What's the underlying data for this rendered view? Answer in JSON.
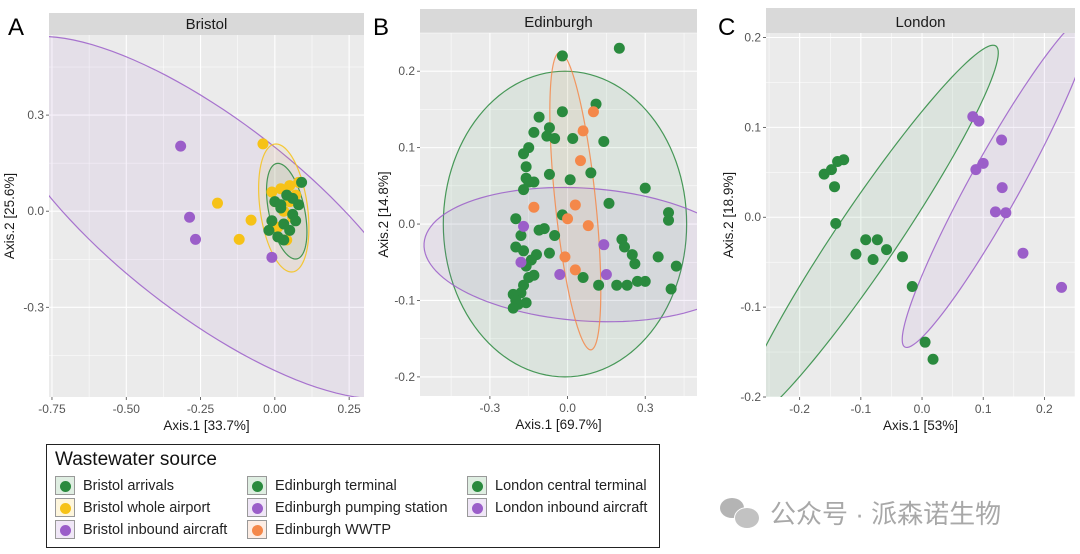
{
  "colors": {
    "green": "#2a8a3e",
    "yellow": "#f6c217",
    "purple": "#9b5ec9",
    "orange": "#f4884a",
    "panel_bg": "#ebebeb",
    "strip_bg": "#d9d9d9",
    "grid": "#ffffff"
  },
  "chart_data": [
    {
      "type": "scatter",
      "panel_letter": "A",
      "title": "Bristol",
      "xlabel": "Axis.1   [33.7%]",
      "ylabel": "Axis.2   [25.6%]",
      "xlim": [
        -0.76,
        0.3
      ],
      "ylim": [
        -0.58,
        0.55
      ],
      "xticks": [
        -0.75,
        -0.5,
        -0.25,
        0.0,
        0.25
      ],
      "xtick_labels": [
        "-0.75",
        "-0.50",
        "-0.25",
        "0.00",
        "0.25"
      ],
      "yticks": [
        -0.3,
        0.0,
        0.3
      ],
      "ytick_labels": [
        "-0.3",
        "0.0",
        "0.3"
      ],
      "grid": true,
      "series": [
        {
          "name": "Bristol inbound aircraft",
          "color_key": "purple",
          "ellipse": {
            "cx": -0.22,
            "cy": -0.02,
            "rx": 0.62,
            "ry": 0.22,
            "angle_deg": -38
          },
          "points": [
            [
              -0.317,
              0.203
            ],
            [
              -0.287,
              -0.019
            ],
            [
              -0.267,
              -0.088
            ],
            [
              -0.01,
              -0.144
            ]
          ]
        },
        {
          "name": "Bristol whole airport",
          "color_key": "yellow",
          "ellipse": {
            "cx": 0.03,
            "cy": 0.01,
            "rx": 0.07,
            "ry": 0.18,
            "angle_deg": 8
          },
          "points": [
            [
              -0.04,
              0.21
            ],
            [
              -0.193,
              0.025
            ],
            [
              -0.08,
              -0.028
            ],
            [
              -0.12,
              -0.088
            ],
            [
              0.02,
              0.07
            ],
            [
              0.05,
              0.08
            ],
            [
              0.07,
              0.05
            ],
            [
              0.0,
              0.03
            ],
            [
              0.03,
              0.0
            ],
            [
              0.06,
              -0.02
            ],
            [
              0.01,
              -0.05
            ],
            [
              0.04,
              -0.09
            ],
            [
              0.08,
              0.09
            ],
            [
              -0.01,
              0.06
            ],
            [
              0.05,
              0.03
            ]
          ]
        },
        {
          "name": "Bristol arrivals",
          "color_key": "green",
          "ellipse": {
            "cx": 0.04,
            "cy": 0.0,
            "rx": 0.05,
            "ry": 0.13,
            "angle_deg": 12
          },
          "points": [
            [
              0.0,
              0.03
            ],
            [
              0.02,
              0.01
            ],
            [
              0.06,
              -0.01
            ],
            [
              0.08,
              0.02
            ],
            [
              0.03,
              -0.04
            ],
            [
              -0.02,
              -0.06
            ],
            [
              0.05,
              -0.06
            ],
            [
              0.07,
              -0.03
            ],
            [
              0.01,
              -0.08
            ],
            [
              0.09,
              0.09
            ],
            [
              0.04,
              0.05
            ],
            [
              0.02,
              0.02
            ],
            [
              -0.01,
              -0.03
            ],
            [
              0.06,
              0.04
            ],
            [
              0.03,
              -0.09
            ]
          ]
        }
      ]
    },
    {
      "type": "scatter",
      "panel_letter": "B",
      "title": "Edinburgh",
      "xlabel": "Axis.1   [69.7%]",
      "ylabel": "Axis.2   [14.8%]",
      "xlim": [
        -0.57,
        0.5
      ],
      "ylim": [
        -0.225,
        0.25
      ],
      "xticks": [
        -0.3,
        0.0,
        0.3
      ],
      "xtick_labels": [
        "-0.3",
        "0.0",
        "0.3"
      ],
      "yticks": [
        -0.2,
        -0.1,
        0.0,
        0.1,
        0.2
      ],
      "ytick_labels": [
        "-0.2",
        "-0.1",
        "0.0",
        "0.1",
        "0.2"
      ],
      "grid": true,
      "series": [
        {
          "name": "Edinburgh terminal",
          "color_key": "green",
          "ellipse": {
            "cx": -0.01,
            "cy": 0.0,
            "rx": 0.47,
            "ry": 0.2,
            "angle_deg": 0
          },
          "points": [
            [
              -0.02,
              0.22
            ],
            [
              0.2,
              0.23
            ],
            [
              -0.02,
              0.147
            ],
            [
              0.11,
              0.157
            ],
            [
              -0.11,
              0.14
            ],
            [
              -0.07,
              0.126
            ],
            [
              -0.13,
              0.12
            ],
            [
              -0.08,
              0.115
            ],
            [
              -0.05,
              0.112
            ],
            [
              0.02,
              0.112
            ],
            [
              0.14,
              0.108
            ],
            [
              -0.15,
              0.1
            ],
            [
              -0.17,
              0.092
            ],
            [
              -0.16,
              0.075
            ],
            [
              -0.07,
              0.065
            ],
            [
              0.09,
              0.067
            ],
            [
              -0.16,
              0.06
            ],
            [
              -0.15,
              0.055
            ],
            [
              -0.13,
              0.055
            ],
            [
              -0.17,
              0.045
            ],
            [
              0.01,
              0.058
            ],
            [
              0.3,
              0.047
            ],
            [
              0.16,
              0.027
            ],
            [
              -0.02,
              0.012
            ],
            [
              0.39,
              0.015
            ],
            [
              0.39,
              0.005
            ],
            [
              -0.2,
              0.007
            ],
            [
              -0.18,
              -0.015
            ],
            [
              -0.11,
              -0.008
            ],
            [
              -0.09,
              -0.006
            ],
            [
              -0.05,
              -0.015
            ],
            [
              -0.2,
              -0.03
            ],
            [
              -0.17,
              -0.035
            ],
            [
              0.21,
              -0.02
            ],
            [
              0.22,
              -0.03
            ],
            [
              0.25,
              -0.04
            ],
            [
              -0.12,
              -0.04
            ],
            [
              -0.14,
              -0.047
            ],
            [
              -0.16,
              -0.055
            ],
            [
              -0.07,
              -0.038
            ],
            [
              0.35,
              -0.043
            ],
            [
              0.26,
              -0.052
            ],
            [
              0.42,
              -0.055
            ],
            [
              -0.15,
              -0.07
            ],
            [
              -0.13,
              -0.067
            ],
            [
              -0.17,
              -0.08
            ],
            [
              0.19,
              -0.08
            ],
            [
              0.23,
              -0.08
            ],
            [
              0.27,
              -0.075
            ],
            [
              0.3,
              -0.075
            ],
            [
              0.4,
              -0.085
            ],
            [
              -0.18,
              -0.09
            ],
            [
              -0.21,
              -0.092
            ],
            [
              -0.2,
              -0.1
            ],
            [
              -0.19,
              -0.105
            ],
            [
              -0.16,
              -0.103
            ],
            [
              -0.21,
              -0.11
            ],
            [
              0.06,
              -0.07
            ],
            [
              0.12,
              -0.08
            ]
          ]
        },
        {
          "name": "Edinburgh pumping station",
          "color_key": "purple",
          "ellipse": {
            "cx": 0.07,
            "cy": -0.04,
            "rx": 0.52,
            "ry": 0.085,
            "angle_deg": -4
          },
          "points": [
            [
              -0.17,
              -0.003
            ],
            [
              -0.18,
              -0.05
            ],
            [
              -0.03,
              -0.066
            ],
            [
              0.14,
              -0.027
            ],
            [
              0.15,
              -0.066
            ]
          ]
        },
        {
          "name": "Edinburgh WWTP",
          "color_key": "orange",
          "ellipse": {
            "cx": 0.03,
            "cy": 0.03,
            "rx": 0.06,
            "ry": 0.19,
            "angle_deg": 6
          },
          "points": [
            [
              0.1,
              0.147
            ],
            [
              0.06,
              0.122
            ],
            [
              0.05,
              0.083
            ],
            [
              -0.13,
              0.022
            ],
            [
              0.03,
              0.025
            ],
            [
              0.0,
              0.007
            ],
            [
              0.08,
              -0.002
            ],
            [
              -0.01,
              -0.043
            ],
            [
              0.03,
              -0.06
            ]
          ]
        }
      ]
    },
    {
      "type": "scatter",
      "panel_letter": "C",
      "title": "London",
      "xlabel": "Axis.1   [53%]",
      "ylabel": "Axis.2   [18.9%]",
      "xlim": [
        -0.255,
        0.25
      ],
      "ylim": [
        -0.2,
        0.205
      ],
      "xticks": [
        -0.2,
        -0.1,
        0.0,
        0.1,
        0.2
      ],
      "xtick_labels": [
        "-0.2",
        "-0.1",
        "0.0",
        "0.1",
        "0.2"
      ],
      "yticks": [
        -0.2,
        -0.1,
        0.0,
        0.1,
        0.2
      ],
      "ytick_labels": [
        "-0.2",
        "-0.1",
        "0.0",
        "0.1",
        "0.2"
      ],
      "grid": true,
      "series": [
        {
          "name": "London central terminal",
          "color_key": "green",
          "ellipse": {
            "cx": -0.088,
            "cy": -0.02,
            "rx": 0.21,
            "ry": 0.03,
            "angle_deg": 56
          },
          "points": [
            [
              -0.16,
              0.048
            ],
            [
              -0.148,
              0.053
            ],
            [
              -0.138,
              0.062
            ],
            [
              -0.128,
              0.064
            ],
            [
              -0.143,
              0.034
            ],
            [
              -0.141,
              -0.007
            ],
            [
              -0.092,
              -0.025
            ],
            [
              -0.073,
              -0.025
            ],
            [
              -0.108,
              -0.041
            ],
            [
              -0.058,
              -0.036
            ],
            [
              -0.08,
              -0.047
            ],
            [
              -0.032,
              -0.044
            ],
            [
              -0.016,
              -0.077
            ],
            [
              0.005,
              -0.139
            ],
            [
              0.018,
              -0.158
            ]
          ]
        },
        {
          "name": "London inbound aircraft",
          "color_key": "purple",
          "ellipse": {
            "cx": 0.122,
            "cy": 0.04,
            "rx": 0.175,
            "ry": 0.026,
            "angle_deg": 61
          },
          "points": [
            [
              0.083,
              0.112
            ],
            [
              0.093,
              0.107
            ],
            [
              0.13,
              0.086
            ],
            [
              0.088,
              0.053
            ],
            [
              0.1,
              0.06
            ],
            [
              0.131,
              0.033
            ],
            [
              0.12,
              0.006
            ],
            [
              0.137,
              0.005
            ],
            [
              0.165,
              -0.04
            ],
            [
              0.228,
              -0.078
            ]
          ]
        }
      ]
    }
  ],
  "legend": {
    "title": "Wastewater source",
    "items": [
      {
        "label": "Bristol arrivals",
        "color_key": "green"
      },
      {
        "label": "Bristol whole airport",
        "color_key": "yellow"
      },
      {
        "label": "Bristol inbound aircraft",
        "color_key": "purple"
      },
      {
        "label": "Edinburgh terminal",
        "color_key": "green"
      },
      {
        "label": "Edinburgh pumping station",
        "color_key": "purple"
      },
      {
        "label": "Edinburgh WWTP",
        "color_key": "orange"
      },
      {
        "label": "London central terminal",
        "color_key": "green"
      },
      {
        "label": "London inbound aircraft",
        "color_key": "purple"
      }
    ]
  },
  "watermark": {
    "icon": "wechat-icon",
    "text": "公众号 · 派森诺生物"
  }
}
